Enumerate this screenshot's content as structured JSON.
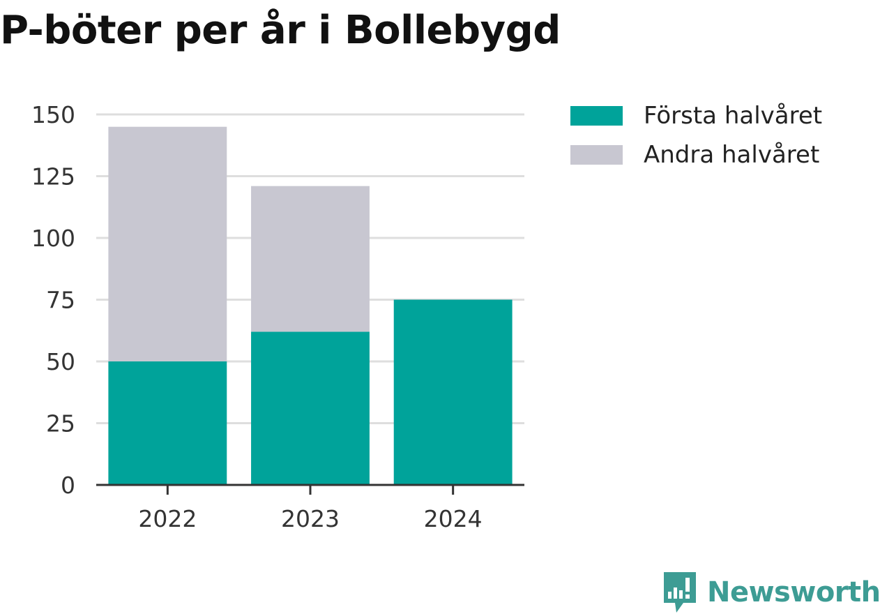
{
  "chart_data": {
    "type": "bar",
    "stacked": true,
    "title": "P-böter per år i Bollebygd",
    "categories": [
      "2022",
      "2023",
      "2024"
    ],
    "series": [
      {
        "name": "Första halvåret",
        "color": "#00a39a",
        "values": [
          50,
          62,
          75
        ]
      },
      {
        "name": "Andra halvåret",
        "color": "#c8c7d1",
        "values": [
          95,
          59,
          0
        ]
      }
    ],
    "ylim": [
      0,
      150
    ],
    "yticks": [
      0,
      25,
      50,
      75,
      100,
      125,
      150
    ],
    "grid": true,
    "legend": "right"
  },
  "brand": {
    "name": "Newsworthy",
    "icon": "newsworthy-logo-icon",
    "color": "#3d9c94"
  }
}
